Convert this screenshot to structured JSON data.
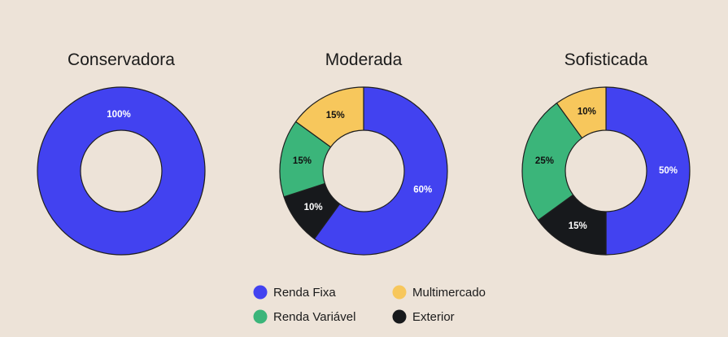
{
  "colors": {
    "background": "#ede3d8",
    "renda_fixa": "#4242f0",
    "renda_variavel": "#3bb57a",
    "multimercado": "#f7c75c",
    "exterior": "#17191c"
  },
  "legend": {
    "items": [
      {
        "label": "Renda Fixa",
        "color": "#4242f0"
      },
      {
        "label": "Multimercado",
        "color": "#f7c75c"
      },
      {
        "label": "Renda Variável",
        "color": "#3bb57a"
      },
      {
        "label": "Exterior",
        "color": "#17191c"
      }
    ]
  },
  "chart_data": [
    {
      "type": "pie",
      "title": "Conservadora",
      "slices": [
        {
          "category": "Renda Fixa",
          "value": 100,
          "label": "100%",
          "color": "#4242f0",
          "label_color": "#ffffff"
        }
      ]
    },
    {
      "type": "pie",
      "title": "Moderada",
      "slices": [
        {
          "category": "Renda Fixa",
          "value": 60,
          "label": "60%",
          "color": "#4242f0",
          "label_color": "#ffffff"
        },
        {
          "category": "Exterior",
          "value": 10,
          "label": "10%",
          "color": "#17191c",
          "label_color": "#ffffff"
        },
        {
          "category": "Renda Variável",
          "value": 15,
          "label": "15%",
          "color": "#3bb57a",
          "label_color": "#111111"
        },
        {
          "category": "Multimercado",
          "value": 15,
          "label": "15%",
          "color": "#f7c75c",
          "label_color": "#111111"
        }
      ]
    },
    {
      "type": "pie",
      "title": "Sofisticada",
      "slices": [
        {
          "category": "Renda Fixa",
          "value": 50,
          "label": "50%",
          "color": "#4242f0",
          "label_color": "#ffffff"
        },
        {
          "category": "Exterior",
          "value": 15,
          "label": "15%",
          "color": "#17191c",
          "label_color": "#ffffff"
        },
        {
          "category": "Renda Variável",
          "value": 25,
          "label": "25%",
          "color": "#3bb57a",
          "label_color": "#111111"
        },
        {
          "category": "Multimercado",
          "value": 10,
          "label": "10%",
          "color": "#f7c75c",
          "label_color": "#111111"
        }
      ]
    }
  ]
}
